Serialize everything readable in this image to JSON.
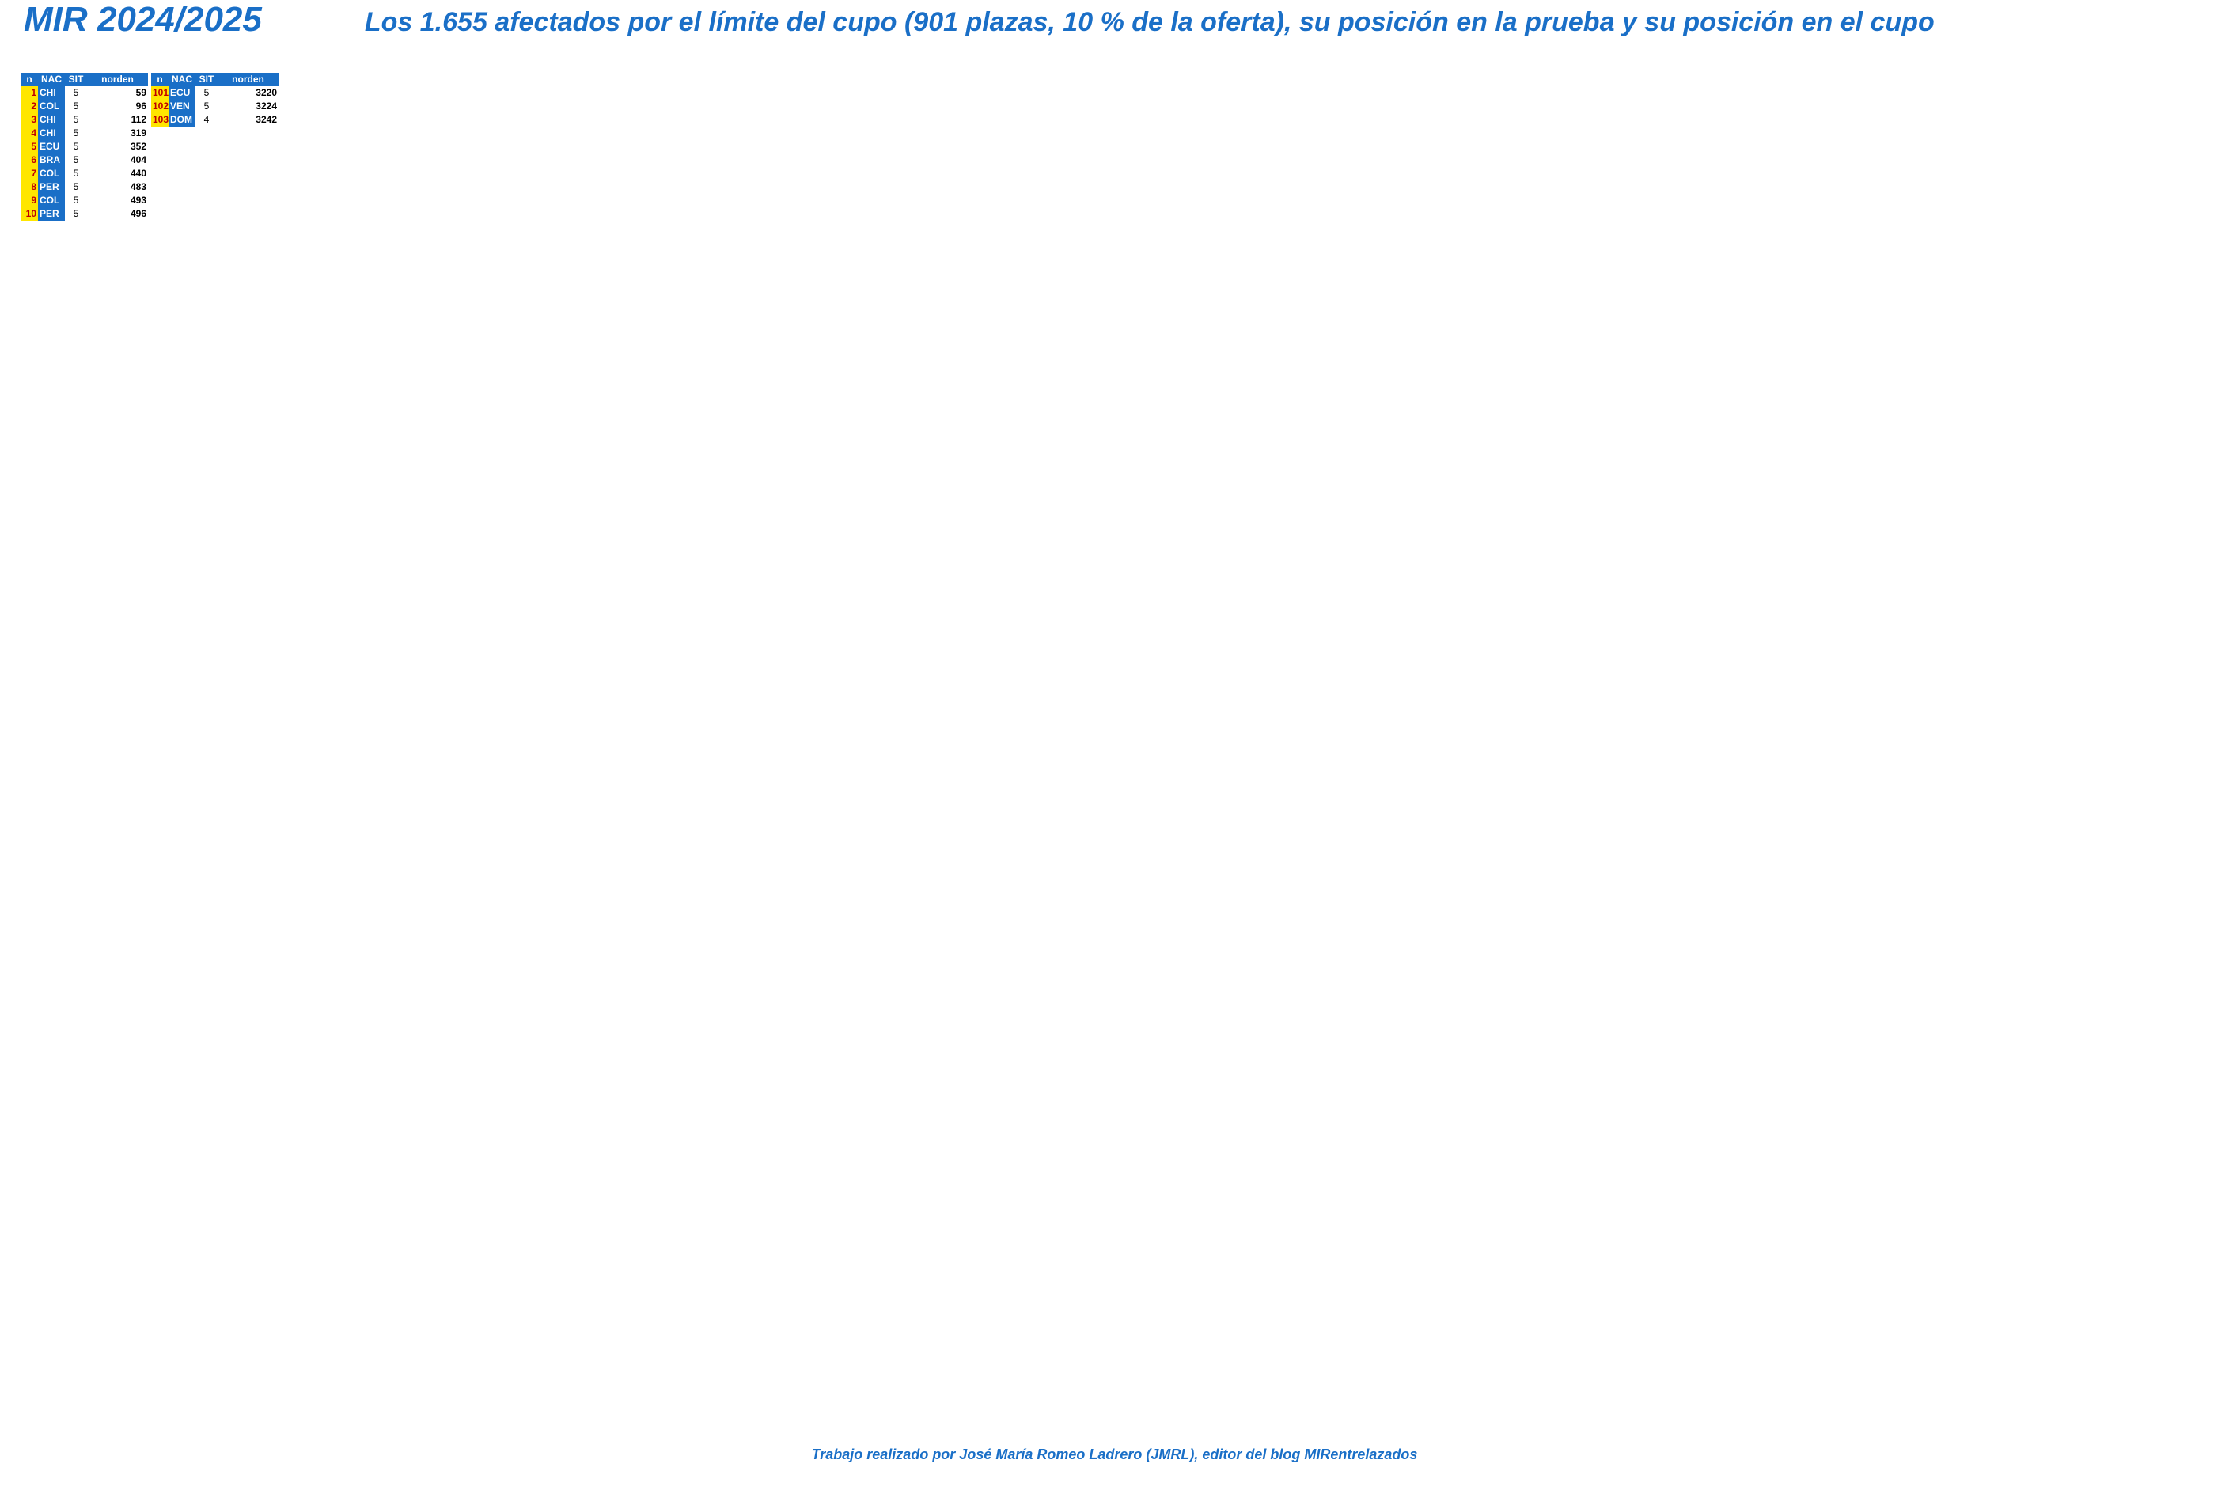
{
  "title": "MIR 2024/2025",
  "subtitle": "Los 1.655 afectados por el límite del cupo (901 plazas, 10 % de la oferta), su posición en la prueba y su posición en el cupo",
  "columns": [
    "n",
    "NAC",
    "SIT",
    "norden"
  ],
  "footer": "Trabajo realizado por José María Romeo Ladrero (JMRL), editor del blog MIRentrelazados",
  "rows_per_block": 100,
  "rows": [
    {
      "n": "1",
      "nac": "CHI",
      "sit": "5",
      "ord": "59"
    },
    {
      "n": "2",
      "nac": "COL",
      "sit": "5",
      "ord": "96"
    },
    {
      "n": "3",
      "nac": "CHI",
      "sit": "5",
      "ord": "112"
    },
    {
      "n": "4",
      "nac": "CHI",
      "sit": "5",
      "ord": "319"
    },
    {
      "n": "5",
      "nac": "ECU",
      "sit": "5",
      "ord": "352"
    },
    {
      "n": "6",
      "nac": "BRA",
      "sit": "5",
      "ord": "404"
    },
    {
      "n": "7",
      "nac": "COL",
      "sit": "5",
      "ord": "440"
    },
    {
      "n": "8",
      "nac": "PER",
      "sit": "5",
      "ord": "483"
    },
    {
      "n": "9",
      "nac": "COL",
      "sit": "5",
      "ord": "493"
    },
    {
      "n": "10",
      "nac": "PER",
      "sit": "5",
      "ord": "496"
    },
    {
      "n": "101",
      "nac": "ECU",
      "sit": "5",
      "ord": "3220"
    },
    {
      "n": "102",
      "nac": "VEN",
      "sit": "5",
      "ord": "3224"
    },
    {
      "n": "103",
      "nac": "DOM",
      "sit": "4",
      "ord": "3242"
    }
  ]
}
